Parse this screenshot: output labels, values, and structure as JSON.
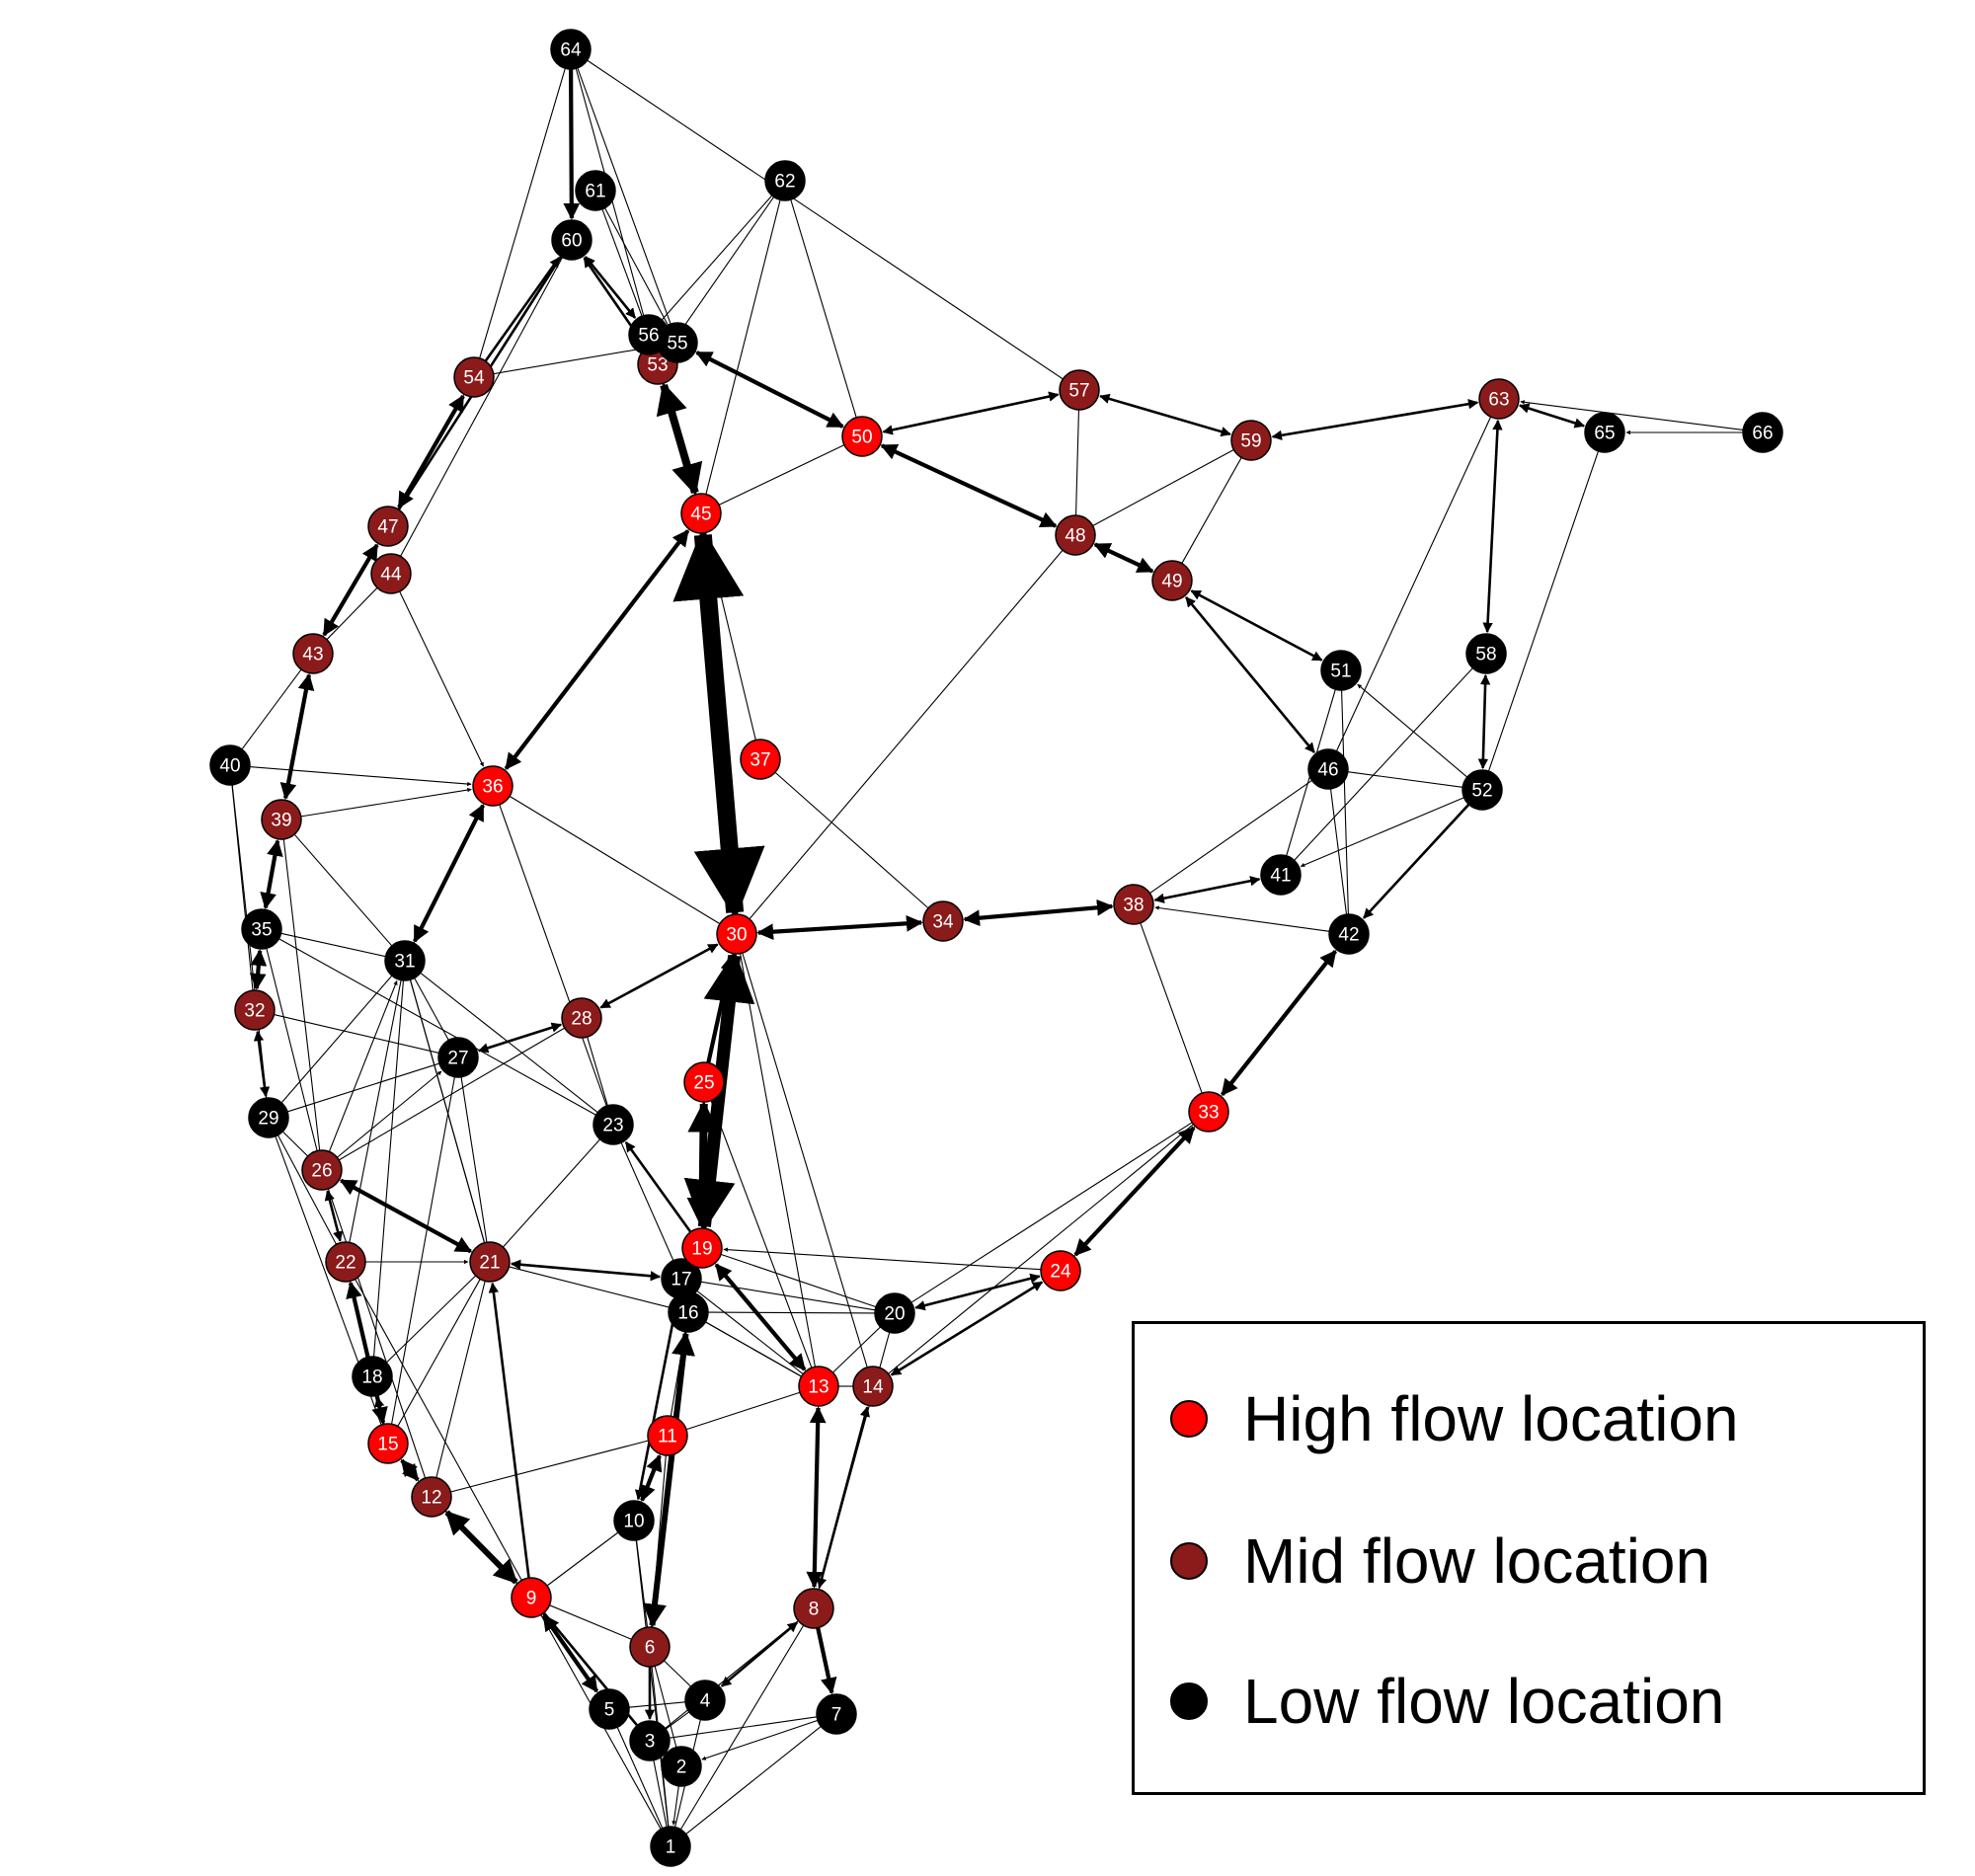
{
  "colors": {
    "high": "#ff0000",
    "mid": "#8b1a1a",
    "low": "#000000",
    "edge": "#000000",
    "label": "#ffffff"
  },
  "legend": {
    "high_label": "High flow location",
    "mid_label": "Mid flow location",
    "low_label": "Low flow location"
  },
  "nodes": [
    {
      "id": "1",
      "flow": "low"
    },
    {
      "id": "2",
      "flow": "low"
    },
    {
      "id": "3",
      "flow": "low"
    },
    {
      "id": "4",
      "flow": "low"
    },
    {
      "id": "5",
      "flow": "low"
    },
    {
      "id": "6",
      "flow": "mid"
    },
    {
      "id": "7",
      "flow": "low"
    },
    {
      "id": "8",
      "flow": "mid"
    },
    {
      "id": "9",
      "flow": "high"
    },
    {
      "id": "10",
      "flow": "low"
    },
    {
      "id": "11",
      "flow": "high"
    },
    {
      "id": "12",
      "flow": "mid"
    },
    {
      "id": "13",
      "flow": "high"
    },
    {
      "id": "14",
      "flow": "mid"
    },
    {
      "id": "15",
      "flow": "high"
    },
    {
      "id": "16",
      "flow": "low"
    },
    {
      "id": "17",
      "flow": "low"
    },
    {
      "id": "18",
      "flow": "low"
    },
    {
      "id": "19",
      "flow": "high"
    },
    {
      "id": "20",
      "flow": "low"
    },
    {
      "id": "21",
      "flow": "mid"
    },
    {
      "id": "22",
      "flow": "mid"
    },
    {
      "id": "23",
      "flow": "low"
    },
    {
      "id": "24",
      "flow": "high"
    },
    {
      "id": "25",
      "flow": "high"
    },
    {
      "id": "26",
      "flow": "mid"
    },
    {
      "id": "27",
      "flow": "low"
    },
    {
      "id": "28",
      "flow": "mid"
    },
    {
      "id": "29",
      "flow": "low"
    },
    {
      "id": "30",
      "flow": "high"
    },
    {
      "id": "31",
      "flow": "low"
    },
    {
      "id": "32",
      "flow": "mid"
    },
    {
      "id": "33",
      "flow": "high"
    },
    {
      "id": "34",
      "flow": "mid"
    },
    {
      "id": "35",
      "flow": "low"
    },
    {
      "id": "36",
      "flow": "high"
    },
    {
      "id": "37",
      "flow": "high"
    },
    {
      "id": "38",
      "flow": "mid"
    },
    {
      "id": "39",
      "flow": "mid"
    },
    {
      "id": "40",
      "flow": "low"
    },
    {
      "id": "41",
      "flow": "low"
    },
    {
      "id": "42",
      "flow": "low"
    },
    {
      "id": "43",
      "flow": "mid"
    },
    {
      "id": "44",
      "flow": "mid"
    },
    {
      "id": "45",
      "flow": "high"
    },
    {
      "id": "46",
      "flow": "low"
    },
    {
      "id": "47",
      "flow": "mid"
    },
    {
      "id": "48",
      "flow": "mid"
    },
    {
      "id": "49",
      "flow": "mid"
    },
    {
      "id": "50",
      "flow": "high"
    },
    {
      "id": "51",
      "flow": "low"
    },
    {
      "id": "52",
      "flow": "low"
    },
    {
      "id": "53",
      "flow": "mid"
    },
    {
      "id": "54",
      "flow": "mid"
    },
    {
      "id": "55",
      "flow": "low"
    },
    {
      "id": "56",
      "flow": "low"
    },
    {
      "id": "57",
      "flow": "mid"
    },
    {
      "id": "58",
      "flow": "low"
    },
    {
      "id": "59",
      "flow": "mid"
    },
    {
      "id": "60",
      "flow": "low"
    },
    {
      "id": "61",
      "flow": "low"
    },
    {
      "id": "62",
      "flow": "low"
    },
    {
      "id": "63",
      "flow": "mid"
    },
    {
      "id": "64",
      "flow": "low"
    },
    {
      "id": "65",
      "flow": "low"
    },
    {
      "id": "66",
      "flow": "low"
    }
  ],
  "edges": [
    {
      "from": "30",
      "to": "45",
      "weight": 9,
      "dir": "both"
    },
    {
      "from": "30",
      "to": "19",
      "weight": 7,
      "dir": "both"
    },
    {
      "from": "30",
      "to": "34",
      "weight": 3,
      "dir": "both"
    },
    {
      "from": "34",
      "to": "38",
      "weight": 3,
      "dir": "both"
    },
    {
      "from": "38",
      "to": "41",
      "weight": 2,
      "dir": "both"
    },
    {
      "from": "30",
      "to": "28",
      "weight": 2,
      "dir": "both"
    },
    {
      "from": "30",
      "to": "36",
      "weight": 1,
      "dir": "none"
    },
    {
      "from": "30",
      "to": "48",
      "weight": 1,
      "dir": "none"
    },
    {
      "from": "30",
      "to": "13",
      "weight": 1,
      "dir": "none"
    },
    {
      "from": "37",
      "to": "34",
      "weight": 1,
      "dir": "none"
    },
    {
      "from": "45",
      "to": "53",
      "weight": 5,
      "dir": "both"
    },
    {
      "from": "45",
      "to": "36",
      "weight": 3,
      "dir": "both"
    },
    {
      "from": "45",
      "to": "50",
      "weight": 1,
      "dir": "none"
    },
    {
      "from": "45",
      "to": "62",
      "weight": 1,
      "dir": "none"
    },
    {
      "from": "45",
      "to": "56",
      "weight": 1,
      "dir": "none"
    },
    {
      "from": "53",
      "to": "60",
      "weight": 2,
      "dir": "both"
    },
    {
      "from": "55",
      "to": "50",
      "weight": 3,
      "dir": "both"
    },
    {
      "from": "50",
      "to": "57",
      "weight": 2,
      "dir": "both"
    },
    {
      "from": "50",
      "to": "48",
      "weight": 3,
      "dir": "both"
    },
    {
      "from": "57",
      "to": "59",
      "weight": 2,
      "dir": "both"
    },
    {
      "from": "57",
      "to": "48",
      "weight": 1,
      "dir": "none"
    },
    {
      "from": "59",
      "to": "63",
      "weight": 2,
      "dir": "both"
    },
    {
      "from": "59",
      "to": "49",
      "weight": 1,
      "dir": "none"
    },
    {
      "from": "59",
      "to": "48",
      "weight": 1,
      "dir": "none"
    },
    {
      "from": "48",
      "to": "49",
      "weight": 3,
      "dir": "both"
    },
    {
      "from": "49",
      "to": "51",
      "weight": 2,
      "dir": "both"
    },
    {
      "from": "49",
      "to": "46",
      "weight": 2,
      "dir": "both"
    },
    {
      "from": "63",
      "to": "65",
      "weight": 2,
      "dir": "both"
    },
    {
      "from": "63",
      "to": "58",
      "weight": 2,
      "dir": "both"
    },
    {
      "from": "63",
      "to": "46",
      "weight": 1,
      "dir": "none"
    },
    {
      "from": "66",
      "to": "65",
      "weight": 1,
      "dir": "end"
    },
    {
      "from": "66",
      "to": "63",
      "weight": 1,
      "dir": "end"
    },
    {
      "from": "65",
      "to": "52",
      "weight": 1,
      "dir": "none"
    },
    {
      "from": "58",
      "to": "52",
      "weight": 2,
      "dir": "both"
    },
    {
      "from": "58",
      "to": "41",
      "weight": 1,
      "dir": "none"
    },
    {
      "from": "52",
      "to": "51",
      "weight": 1,
      "dir": "end"
    },
    {
      "from": "52",
      "to": "41",
      "weight": 1,
      "dir": "end"
    },
    {
      "from": "52",
      "to": "42",
      "weight": 2,
      "dir": "end"
    },
    {
      "from": "52",
      "to": "46",
      "weight": 1,
      "dir": "none"
    },
    {
      "from": "51",
      "to": "42",
      "weight": 1,
      "dir": "none"
    },
    {
      "from": "51",
      "to": "41",
      "weight": 1,
      "dir": "none"
    },
    {
      "from": "46",
      "to": "38",
      "weight": 1,
      "dir": "none"
    },
    {
      "from": "46",
      "to": "42",
      "weight": 1,
      "dir": "none"
    },
    {
      "from": "42",
      "to": "38",
      "weight": 1,
      "dir": "end"
    },
    {
      "from": "42",
      "to": "33",
      "weight": 3,
      "dir": "both"
    },
    {
      "from": "38",
      "to": "33",
      "weight": 1,
      "dir": "none"
    },
    {
      "from": "33",
      "to": "24",
      "weight": 3,
      "dir": "both"
    },
    {
      "from": "33",
      "to": "20",
      "weight": 1,
      "dir": "none"
    },
    {
      "from": "33",
      "to": "14",
      "weight": 1,
      "dir": "none"
    },
    {
      "from": "24",
      "to": "20",
      "weight": 2,
      "dir": "both"
    },
    {
      "from": "24",
      "to": "14",
      "weight": 2,
      "dir": "both"
    },
    {
      "from": "24",
      "to": "19",
      "weight": 1,
      "dir": "end"
    },
    {
      "from": "25",
      "to": "19",
      "weight": 5,
      "dir": "both"
    },
    {
      "from": "25",
      "to": "30",
      "weight": 3,
      "dir": "end"
    },
    {
      "from": "19",
      "to": "13",
      "weight": 3,
      "dir": "both"
    },
    {
      "from": "19",
      "to": "23",
      "weight": 2,
      "dir": "end"
    },
    {
      "from": "19",
      "to": "20",
      "weight": 1,
      "dir": "none"
    },
    {
      "from": "17",
      "to": "21",
      "weight": 2,
      "dir": "both"
    },
    {
      "from": "17",
      "to": "20",
      "weight": 1,
      "dir": "none"
    },
    {
      "from": "17",
      "to": "13",
      "weight": 1,
      "dir": "none"
    },
    {
      "from": "16",
      "to": "6",
      "weight": 4,
      "dir": "both"
    },
    {
      "from": "16",
      "to": "13",
      "weight": 1,
      "dir": "none"
    },
    {
      "from": "16",
      "to": "20",
      "weight": 1,
      "dir": "none"
    },
    {
      "from": "17",
      "to": "10",
      "weight": 2,
      "dir": "end"
    },
    {
      "from": "11",
      "to": "10",
      "weight": 3,
      "dir": "both"
    },
    {
      "from": "11",
      "to": "12",
      "weight": 1,
      "dir": "none"
    },
    {
      "from": "11",
      "to": "13",
      "weight": 1,
      "dir": "none"
    },
    {
      "from": "13",
      "to": "8",
      "weight": 3,
      "dir": "both"
    },
    {
      "from": "14",
      "to": "8",
      "weight": 2,
      "dir": "both"
    },
    {
      "from": "14",
      "to": "13",
      "weight": 1,
      "dir": "none"
    },
    {
      "from": "8",
      "to": "7",
      "weight": 3,
      "dir": "end"
    },
    {
      "from": "8",
      "to": "4",
      "weight": 2,
      "dir": "both"
    },
    {
      "from": "8",
      "to": "3",
      "weight": 1,
      "dir": "none"
    },
    {
      "from": "8",
      "to": "1",
      "weight": 1,
      "dir": "none"
    },
    {
      "from": "8",
      "to": "20",
      "weight": 1,
      "dir": "none"
    },
    {
      "from": "7",
      "to": "2",
      "weight": 1,
      "dir": "end"
    },
    {
      "from": "7",
      "to": "3",
      "weight": 1,
      "dir": "none"
    },
    {
      "from": "7",
      "to": "1",
      "weight": 1,
      "dir": "none"
    },
    {
      "from": "6",
      "to": "3",
      "weight": 2,
      "dir": "end"
    },
    {
      "from": "6",
      "to": "2",
      "weight": 1,
      "dir": "none"
    },
    {
      "from": "6",
      "to": "4",
      "weight": 1,
      "dir": "none"
    },
    {
      "from": "6",
      "to": "1",
      "weight": 1,
      "dir": "none"
    },
    {
      "from": "9",
      "to": "5",
      "weight": 3,
      "dir": "both"
    },
    {
      "from": "9",
      "to": "3",
      "weight": 2,
      "dir": "none"
    },
    {
      "from": "9",
      "to": "6",
      "weight": 1,
      "dir": "none"
    },
    {
      "from": "9",
      "to": "1",
      "weight": 1,
      "dir": "none"
    },
    {
      "from": "9",
      "to": "10",
      "weight": 1,
      "dir": "none"
    },
    {
      "from": "9",
      "to": "12",
      "weight": 4,
      "dir": "both"
    },
    {
      "from": "9",
      "to": "21",
      "weight": 2,
      "dir": "end"
    },
    {
      "from": "9",
      "to": "22",
      "weight": 1,
      "dir": "none"
    },
    {
      "from": "5",
      "to": "1",
      "weight": 1,
      "dir": "none"
    },
    {
      "from": "5",
      "to": "4",
      "weight": 1,
      "dir": "none"
    },
    {
      "from": "4",
      "to": "1",
      "weight": 1,
      "dir": "none"
    },
    {
      "from": "4",
      "to": "3",
      "weight": 1,
      "dir": "none"
    },
    {
      "from": "2",
      "to": "1",
      "weight": 1,
      "dir": "end"
    },
    {
      "from": "3",
      "to": "1",
      "weight": 1,
      "dir": "none"
    },
    {
      "from": "10",
      "to": "1",
      "weight": 1,
      "dir": "none"
    },
    {
      "from": "10",
      "to": "6",
      "weight": 1,
      "dir": "none"
    },
    {
      "from": "12",
      "to": "15",
      "weight": 3,
      "dir": "both"
    },
    {
      "from": "12",
      "to": "21",
      "weight": 1,
      "dir": "none"
    },
    {
      "from": "12",
      "to": "26",
      "weight": 1,
      "dir": "none"
    },
    {
      "from": "15",
      "to": "22",
      "weight": 3,
      "dir": "both"
    },
    {
      "from": "15",
      "to": "18",
      "weight": 2,
      "dir": "end"
    },
    {
      "from": "15",
      "to": "21",
      "weight": 1,
      "dir": "none"
    },
    {
      "from": "15",
      "to": "29",
      "weight": 1,
      "dir": "none"
    },
    {
      "from": "18",
      "to": "21",
      "weight": 1,
      "dir": "none"
    },
    {
      "from": "18",
      "to": "22",
      "weight": 1,
      "dir": "none"
    },
    {
      "from": "18",
      "to": "31",
      "weight": 1,
      "dir": "none"
    },
    {
      "from": "22",
      "to": "26",
      "weight": 2,
      "dir": "both"
    },
    {
      "from": "22",
      "to": "21",
      "weight": 1,
      "dir": "end"
    },
    {
      "from": "22",
      "to": "29",
      "weight": 1,
      "dir": "none"
    },
    {
      "from": "22",
      "to": "31",
      "weight": 1,
      "dir": "none"
    },
    {
      "from": "21",
      "to": "26",
      "weight": 3,
      "dir": "both"
    },
    {
      "from": "21",
      "to": "23",
      "weight": 1,
      "dir": "none"
    },
    {
      "from": "21",
      "to": "31",
      "weight": 1,
      "dir": "none"
    },
    {
      "from": "21",
      "to": "27",
      "weight": 1,
      "dir": "none"
    },
    {
      "from": "26",
      "to": "29",
      "weight": 1,
      "dir": "none"
    },
    {
      "from": "26",
      "to": "31",
      "weight": 1,
      "dir": "end"
    },
    {
      "from": "26",
      "to": "27",
      "weight": 1,
      "dir": "end"
    },
    {
      "from": "26",
      "to": "28",
      "weight": 1,
      "dir": "none"
    },
    {
      "from": "26",
      "to": "35",
      "weight": 1,
      "dir": "none"
    },
    {
      "from": "26",
      "to": "39",
      "weight": 1,
      "dir": "none"
    },
    {
      "from": "29",
      "to": "32",
      "weight": 2,
      "dir": "both"
    },
    {
      "from": "29",
      "to": "31",
      "weight": 1,
      "dir": "none"
    },
    {
      "from": "29",
      "to": "27",
      "weight": 1,
      "dir": "none"
    },
    {
      "from": "29",
      "to": "40",
      "weight": 1,
      "dir": "none"
    },
    {
      "from": "32",
      "to": "35",
      "weight": 3,
      "dir": "both"
    },
    {
      "from": "32",
      "to": "27",
      "weight": 1,
      "dir": "none"
    },
    {
      "from": "35",
      "to": "39",
      "weight": 3,
      "dir": "both"
    },
    {
      "from": "35",
      "to": "31",
      "weight": 1,
      "dir": "none"
    },
    {
      "from": "35",
      "to": "23",
      "weight": 1,
      "dir": "none"
    },
    {
      "from": "39",
      "to": "43",
      "weight": 3,
      "dir": "both"
    },
    {
      "from": "39",
      "to": "36",
      "weight": 1,
      "dir": "end"
    },
    {
      "from": "39",
      "to": "31",
      "weight": 1,
      "dir": "none"
    },
    {
      "from": "40",
      "to": "36",
      "weight": 1,
      "dir": "end"
    },
    {
      "from": "40",
      "to": "43",
      "weight": 1,
      "dir": "none"
    },
    {
      "from": "40",
      "to": "32",
      "weight": 1,
      "dir": "none"
    },
    {
      "from": "43",
      "to": "47",
      "weight": 3,
      "dir": "both"
    },
    {
      "from": "43",
      "to": "44",
      "weight": 1,
      "dir": "none"
    },
    {
      "from": "47",
      "to": "54",
      "weight": 3,
      "dir": "both"
    },
    {
      "from": "47",
      "to": "60",
      "weight": 2,
      "dir": "none"
    },
    {
      "from": "44",
      "to": "36",
      "weight": 1,
      "dir": "end"
    },
    {
      "from": "44",
      "to": "60",
      "weight": 1,
      "dir": "none"
    },
    {
      "from": "54",
      "to": "60",
      "weight": 2,
      "dir": "end"
    },
    {
      "from": "54",
      "to": "64",
      "weight": 1,
      "dir": "none"
    },
    {
      "from": "54",
      "to": "55",
      "weight": 1,
      "dir": "none"
    },
    {
      "from": "36",
      "to": "31",
      "weight": 3,
      "dir": "both"
    },
    {
      "from": "36",
      "to": "23",
      "weight": 1,
      "dir": "none"
    },
    {
      "from": "31",
      "to": "27",
      "weight": 1,
      "dir": "none"
    },
    {
      "from": "31",
      "to": "23",
      "weight": 1,
      "dir": "none"
    },
    {
      "from": "31",
      "to": "21",
      "weight": 1,
      "dir": "none"
    },
    {
      "from": "28",
      "to": "27",
      "weight": 2,
      "dir": "both"
    },
    {
      "from": "28",
      "to": "23",
      "weight": 1,
      "dir": "none"
    },
    {
      "from": "27",
      "to": "15",
      "weight": 1,
      "dir": "none"
    },
    {
      "from": "23",
      "to": "17",
      "weight": 1,
      "dir": "none"
    },
    {
      "from": "64",
      "to": "60",
      "weight": 3,
      "dir": "end"
    },
    {
      "from": "64",
      "to": "56",
      "weight": 1,
      "dir": "none"
    },
    {
      "from": "64",
      "to": "55",
      "weight": 1,
      "dir": "none"
    },
    {
      "from": "64",
      "to": "57",
      "weight": 1,
      "dir": "none"
    },
    {
      "from": "61",
      "to": "56",
      "weight": 1,
      "dir": "none"
    },
    {
      "from": "61",
      "to": "55",
      "weight": 1,
      "dir": "none"
    },
    {
      "from": "60",
      "to": "56",
      "weight": 2,
      "dir": "both"
    },
    {
      "from": "62",
      "to": "56",
      "weight": 1,
      "dir": "none"
    },
    {
      "from": "62",
      "to": "53",
      "weight": 1,
      "dir": "none"
    },
    {
      "from": "62",
      "to": "50",
      "weight": 1,
      "dir": "none"
    },
    {
      "from": "37",
      "to": "45",
      "weight": 1,
      "dir": "none"
    },
    {
      "from": "11",
      "to": "16",
      "weight": 1,
      "dir": "none"
    },
    {
      "from": "6",
      "to": "11",
      "weight": 1,
      "dir": "none"
    },
    {
      "from": "13",
      "to": "16",
      "weight": 1,
      "dir": "none"
    },
    {
      "from": "19",
      "to": "16",
      "weight": 1,
      "dir": "none"
    },
    {
      "from": "20",
      "to": "13",
      "weight": 1,
      "dir": "none"
    },
    {
      "from": "21",
      "to": "16",
      "weight": 1,
      "dir": "none"
    },
    {
      "from": "25",
      "to": "13",
      "weight": 1,
      "dir": "none"
    },
    {
      "from": "30",
      "to": "14",
      "weight": 1,
      "dir": "none"
    }
  ]
}
